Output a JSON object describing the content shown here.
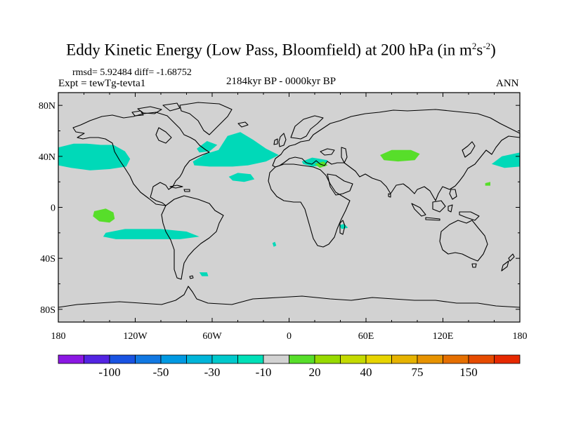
{
  "title": {
    "main": "Eddy Kinetic Energy (Low Pass, Bloomfield) at 200 hPa (in m",
    "sup1": "2",
    "mid": "s",
    "sup2": "-2",
    "end": ")"
  },
  "stats": "rmsd= 5.92484 diff= -1.68752",
  "experiment": "Expt = tewTg-tevta1",
  "period": "2184kyr BP - 0000kyr BP",
  "season": "ANN",
  "map": {
    "projection": "cylindrical-equidistant",
    "lon_range": [
      -180,
      180
    ],
    "lat_range": [
      -90,
      90
    ],
    "background_color": "#d2d2d2",
    "y_tick_labels": [
      {
        "lat": 80,
        "label": "80N"
      },
      {
        "lat": 40,
        "label": "40N"
      },
      {
        "lat": 0,
        "label": "0"
      },
      {
        "lat": -40,
        "label": "40S"
      },
      {
        "lat": -80,
        "label": "80S"
      }
    ],
    "x_tick_labels": [
      {
        "lon": -180,
        "label": "180"
      },
      {
        "lon": -120,
        "label": "120W"
      },
      {
        "lon": -60,
        "label": "60W"
      },
      {
        "lon": 0,
        "label": "0"
      },
      {
        "lon": 60,
        "label": "60E"
      },
      {
        "lon": 120,
        "label": "120E"
      },
      {
        "lon": 180,
        "label": "180"
      }
    ],
    "anomaly_regions": [
      {
        "id": "north-pacific",
        "color": "#00d9b8",
        "class": "-10 to -30",
        "points": [
          [
            -180,
            47
          ],
          [
            -168,
            50
          ],
          [
            -158,
            50
          ],
          [
            -147,
            49
          ],
          [
            -137,
            49
          ],
          [
            -128,
            44
          ],
          [
            -124,
            38
          ],
          [
            -127,
            32
          ],
          [
            -140,
            30
          ],
          [
            -155,
            29
          ],
          [
            -170,
            31
          ],
          [
            -180,
            33
          ]
        ]
      },
      {
        "id": "north-atlantic",
        "color": "#00d9b8",
        "class": "-10 to -30",
        "points": [
          [
            -75,
            36
          ],
          [
            -65,
            42
          ],
          [
            -55,
            45
          ],
          [
            -48,
            56
          ],
          [
            -38,
            59
          ],
          [
            -28,
            53
          ],
          [
            -18,
            46
          ],
          [
            -8,
            41
          ],
          [
            -18,
            36
          ],
          [
            -32,
            33
          ],
          [
            -44,
            32
          ],
          [
            -62,
            32
          ],
          [
            -74,
            33
          ]
        ]
      },
      {
        "id": "west-atlantic-blob",
        "color": "#00d9b8",
        "class": "-10 to -30",
        "points": [
          [
            -72,
            46
          ],
          [
            -64,
            52
          ],
          [
            -56,
            49
          ],
          [
            -62,
            44
          ],
          [
            -70,
            43
          ]
        ]
      },
      {
        "id": "subtropical-atlantic",
        "color": "#00d9b8",
        "class": "-10 to -30",
        "points": [
          [
            -47,
            24
          ],
          [
            -40,
            27
          ],
          [
            -30,
            26
          ],
          [
            -27,
            22
          ],
          [
            -35,
            20
          ],
          [
            -44,
            21
          ]
        ]
      },
      {
        "id": "mediterranean",
        "color": "#00d9b8",
        "class": "-10 to -30",
        "points": [
          [
            10,
            36
          ],
          [
            18,
            39
          ],
          [
            30,
            37
          ],
          [
            28,
            33
          ],
          [
            18,
            32
          ],
          [
            11,
            34
          ]
        ]
      },
      {
        "id": "west-pacific-jet",
        "color": "#00d9b8",
        "class": "-10 to -30",
        "points": [
          [
            158,
            34
          ],
          [
            166,
            40
          ],
          [
            180,
            43
          ],
          [
            180,
            32
          ],
          [
            168,
            31
          ]
        ]
      },
      {
        "id": "south-pacific-band",
        "color": "#00d9b8",
        "class": "-10 to -30",
        "points": [
          [
            -143,
            -20
          ],
          [
            -128,
            -17
          ],
          [
            -100,
            -17
          ],
          [
            -80,
            -19
          ],
          [
            -70,
            -23
          ],
          [
            -85,
            -25
          ],
          [
            -110,
            -25
          ],
          [
            -135,
            -25
          ],
          [
            -145,
            -23
          ]
        ]
      },
      {
        "id": "east-africa-coast",
        "color": "#00d9b8",
        "class": "-10 to -30",
        "points": [
          [
            39,
            -14
          ],
          [
            43,
            -13
          ],
          [
            46,
            -16
          ],
          [
            41,
            -17
          ]
        ]
      },
      {
        "id": "south-atlantic-speck",
        "color": "#00d9b8",
        "class": "-10 to -30",
        "points": [
          [
            -13,
            -28
          ],
          [
            -11,
            -27
          ],
          [
            -10,
            -30
          ],
          [
            -12,
            -31
          ]
        ]
      },
      {
        "id": "drake-passage-speck",
        "color": "#00d9b8",
        "class": "-10 to -30",
        "points": [
          [
            -70,
            -51
          ],
          [
            -64,
            -51
          ],
          [
            -63,
            -54
          ],
          [
            -68,
            -54
          ]
        ]
      },
      {
        "id": "eastern-pacific-positive",
        "color": "#57de2a",
        "class": "10 to 20",
        "points": [
          [
            -152,
            -3
          ],
          [
            -143,
            -1
          ],
          [
            -137,
            -4
          ],
          [
            -136,
            -9
          ],
          [
            -140,
            -12
          ],
          [
            -148,
            -11
          ],
          [
            -153,
            -7
          ]
        ]
      },
      {
        "id": "central-asia-positive",
        "color": "#57de2a",
        "class": "10 to 20",
        "points": [
          [
            71,
            41
          ],
          [
            80,
            45
          ],
          [
            95,
            45
          ],
          [
            102,
            42
          ],
          [
            98,
            37
          ],
          [
            85,
            36
          ],
          [
            74,
            37
          ]
        ]
      },
      {
        "id": "north-africa-positive",
        "color": "#57de2a",
        "class": "10 to 20",
        "points": [
          [
            20,
            34
          ],
          [
            27,
            36
          ],
          [
            30,
            33
          ],
          [
            24,
            31
          ]
        ]
      },
      {
        "id": "west-pacific-speck",
        "color": "#57de2a",
        "class": "10 to 20",
        "points": [
          [
            153,
            19
          ],
          [
            157,
            20
          ],
          [
            157,
            17
          ],
          [
            153,
            17
          ]
        ]
      }
    ]
  },
  "colorbar": {
    "labels": [
      "-100",
      "-50",
      "-30",
      "-10",
      "20",
      "40",
      "75",
      "150"
    ],
    "colors": [
      "#8b17e3",
      "#5324e2",
      "#1953e2",
      "#1178e2",
      "#0099e2",
      "#00b5d9",
      "#00c9cc",
      "#00e0b8",
      "#d2d2d2",
      "#57de2a",
      "#97da00",
      "#c4da00",
      "#e7d400",
      "#e6b300",
      "#e79300",
      "#e56f00",
      "#e64b00",
      "#e62900"
    ]
  }
}
